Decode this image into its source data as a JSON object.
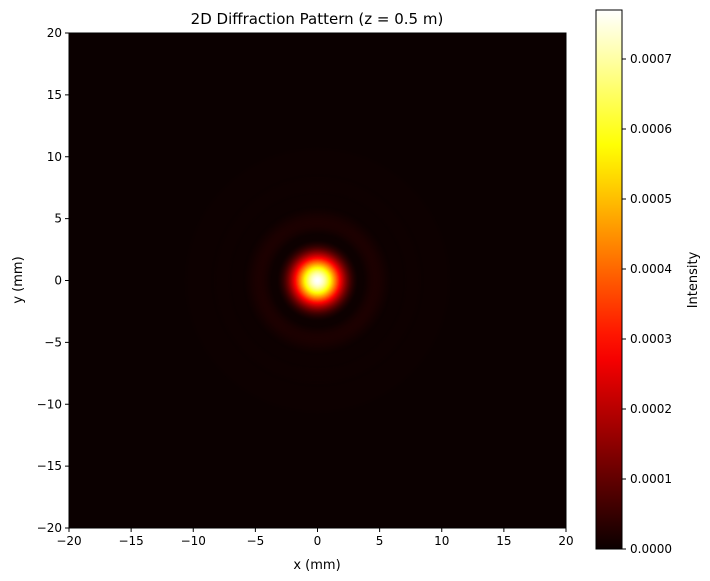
{
  "chart_data": {
    "type": "heatmap",
    "title": "2D Diffraction Pattern (z = 0.5 m)",
    "xlabel": "x (mm)",
    "ylabel": "y (mm)",
    "xlim": [
      -20,
      20
    ],
    "ylim": [
      -20,
      20
    ],
    "xticks": [
      -20,
      -15,
      -10,
      -5,
      0,
      5,
      10,
      15,
      20
    ],
    "yticks": [
      -20,
      -15,
      -10,
      -5,
      0,
      5,
      10,
      15,
      20
    ],
    "xtick_labels": [
      "−20",
      "−15",
      "−10",
      "−5",
      "0",
      "5",
      "10",
      "15",
      "20"
    ],
    "ytick_labels": [
      "−20",
      "−15",
      "−10",
      "−5",
      "0",
      "5",
      "10",
      "15",
      "20"
    ],
    "colormap": "hot",
    "colorbar": {
      "label": "Intensity",
      "range": [
        0,
        0.00077
      ],
      "ticks": [
        0,
        0.0001,
        0.0002,
        0.0003,
        0.0004,
        0.0005,
        0.0006,
        0.0007
      ],
      "tick_labels": [
        "0.0000",
        "0.0001",
        "0.0002",
        "0.0003",
        "0.0004",
        "0.0005",
        "0.0006",
        "0.0007"
      ]
    },
    "pattern": {
      "kind": "airy",
      "center": [
        0,
        0
      ],
      "peak_intensity": 0.00077,
      "first_dark_ring_radius_mm": 3.5
    },
    "grid": false,
    "legend": "none"
  }
}
